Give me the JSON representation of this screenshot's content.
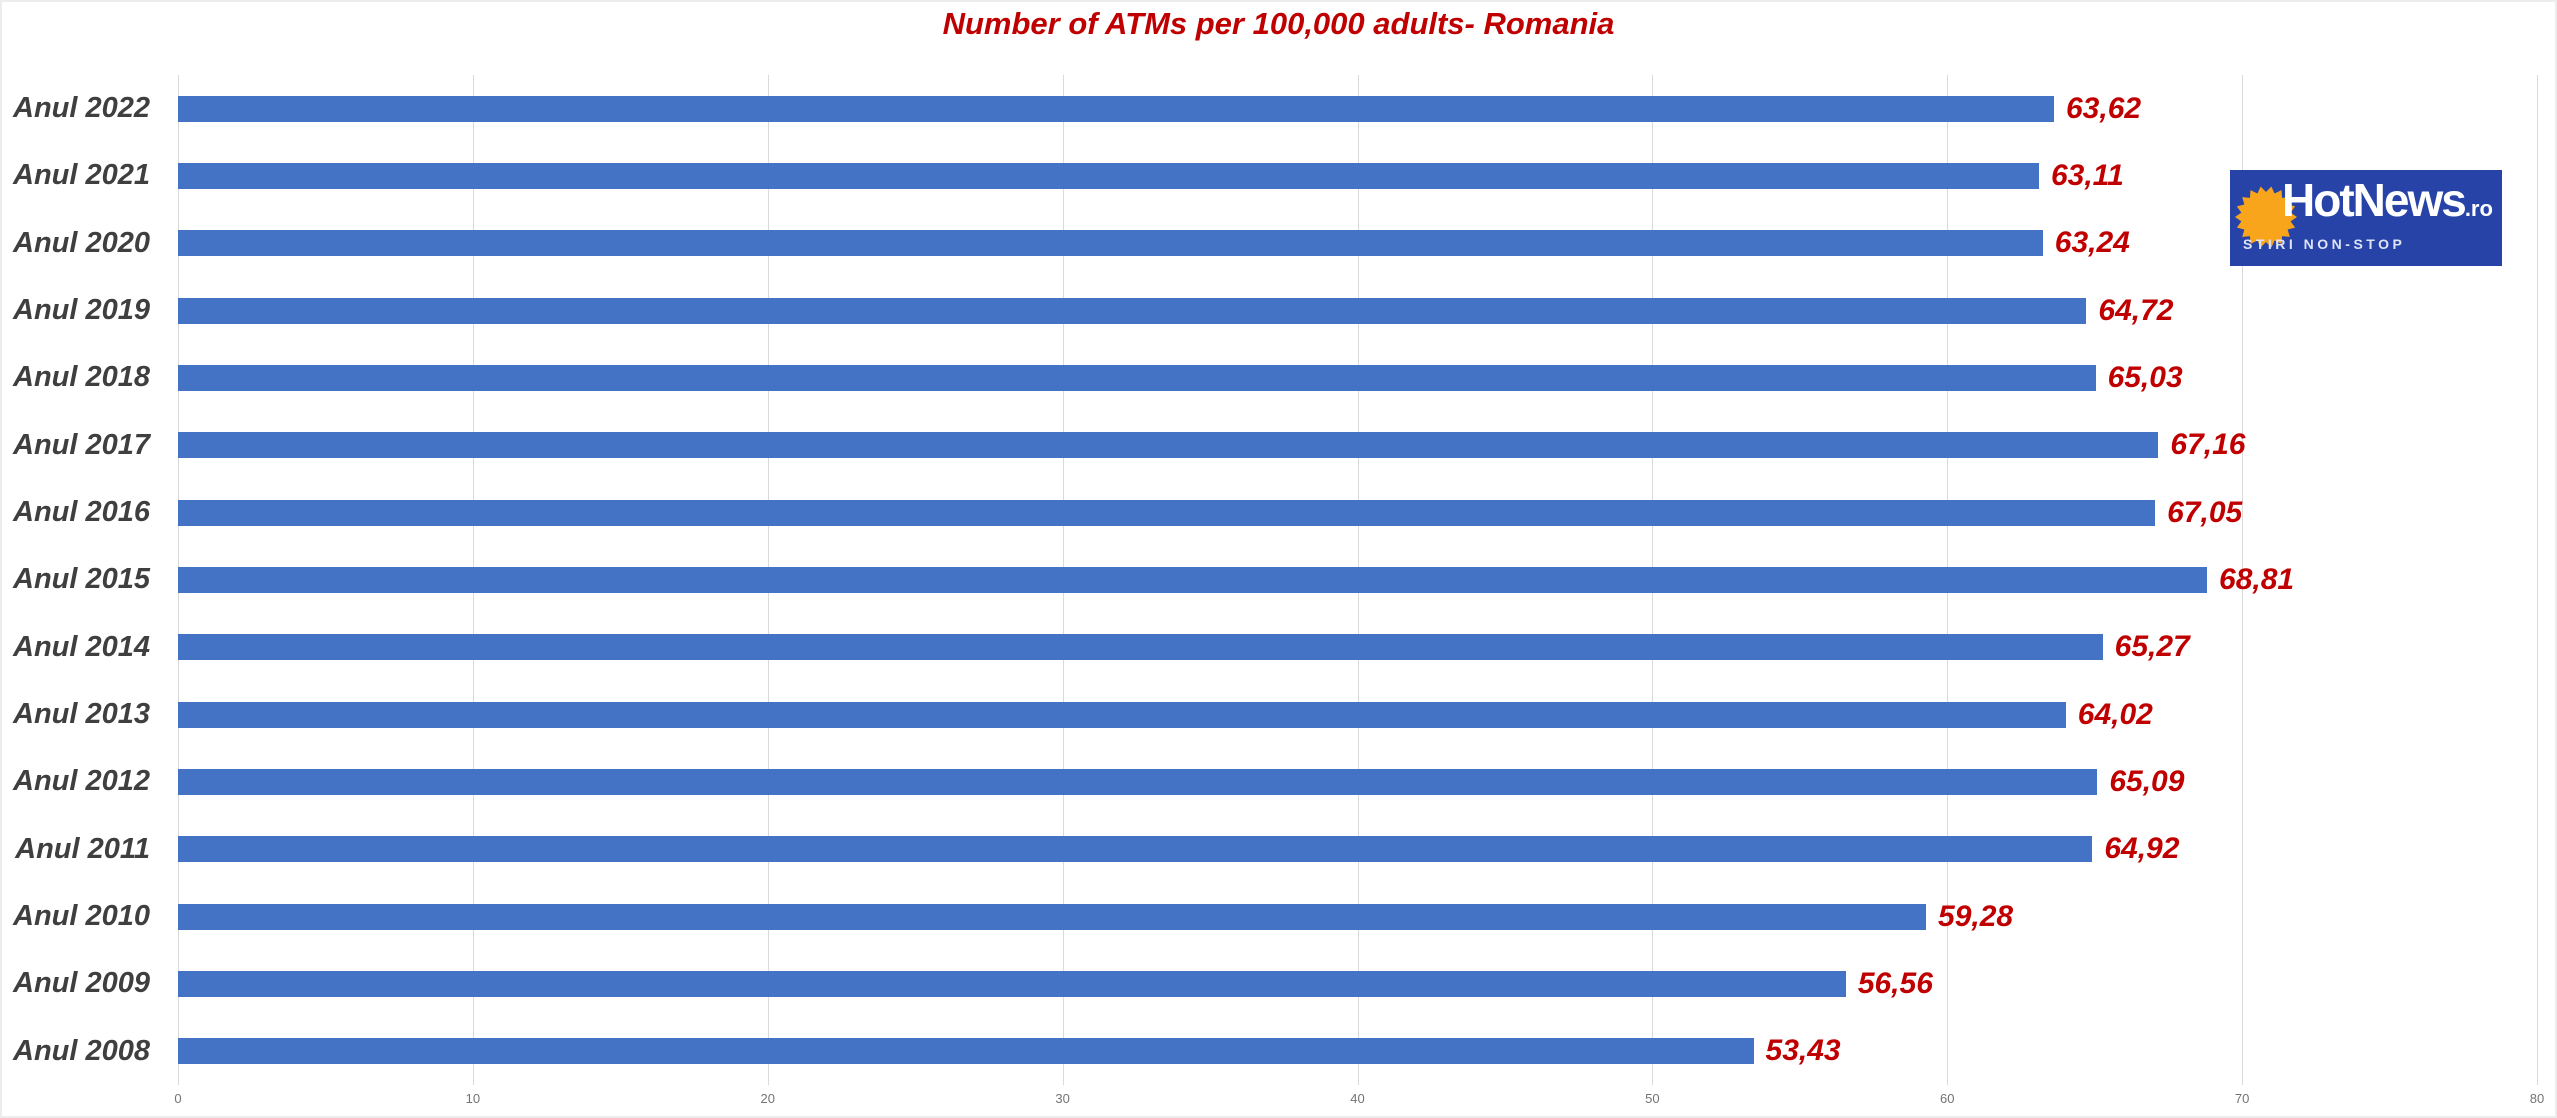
{
  "page": {
    "background": "#FFFFFF",
    "frame_border_color": "#ECECEC"
  },
  "chart_data": {
    "type": "bar",
    "orientation": "horizontal",
    "title": "Number of ATMs per 100,000 adults- Romania",
    "title_color": "#C00000",
    "categories": [
      "Anul 2022",
      "Anul 2021",
      "Anul 2020",
      "Anul 2019",
      "Anul 2018",
      "Anul 2017",
      "Anul 2016",
      "Anul 2015",
      "Anul 2014",
      "Anul 2013",
      "Anul 2012",
      "Anul 2011",
      "Anul 2010",
      "Anul 2009",
      "Anul 2008"
    ],
    "values": [
      63.62,
      63.11,
      63.24,
      64.72,
      65.03,
      67.16,
      67.05,
      68.81,
      65.27,
      64.02,
      65.09,
      64.92,
      59.28,
      56.56,
      53.43
    ],
    "value_labels": [
      "63,62",
      "63,11",
      "63,24",
      "64,72",
      "65,03",
      "67,16",
      "67,05",
      "68,81",
      "65,27",
      "64,02",
      "65,09",
      "64,92",
      "59,28",
      "56,56",
      "53,43"
    ],
    "xlabel": "",
    "ylabel": "",
    "xlim": [
      0,
      80
    ],
    "x_ticks": [
      0,
      10,
      20,
      30,
      40,
      50,
      60,
      70,
      80
    ],
    "grid": true,
    "legend_position": "none",
    "bar_color": "#4472C4",
    "value_label_color": "#C00000",
    "category_label_color": "#3F3F3F",
    "gridline_color": "#D9D9D9",
    "tick_label_color": "#737373"
  },
  "logo": {
    "name": "HotNews.ro",
    "text_main": "HotNews",
    "text_suffix": ".ro",
    "tagline": "STIRI NON-STOP",
    "bg_color": "#2843A8",
    "sun_color": "#F9A51B",
    "text_color": "#FFFFFF",
    "tagline_color": "#DDE4F6"
  }
}
